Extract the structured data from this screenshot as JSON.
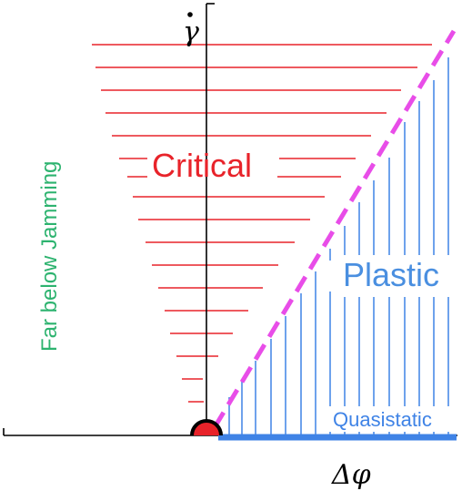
{
  "labels": {
    "y_axis": "γ",
    "x_axis": "Δφ",
    "critical": "Critical",
    "plastic": "Plastic",
    "quasistatic": "Quasistatic",
    "far_below": "Far below Jamming"
  },
  "colors": {
    "axis": "#000000",
    "critical": "#e8232a",
    "plastic": "#4a8fe0",
    "quasistatic_line": "#3f83e6",
    "boundary": "#e84de8",
    "far_below": "#2db36f",
    "jamming_point": "#e8232a"
  }
}
